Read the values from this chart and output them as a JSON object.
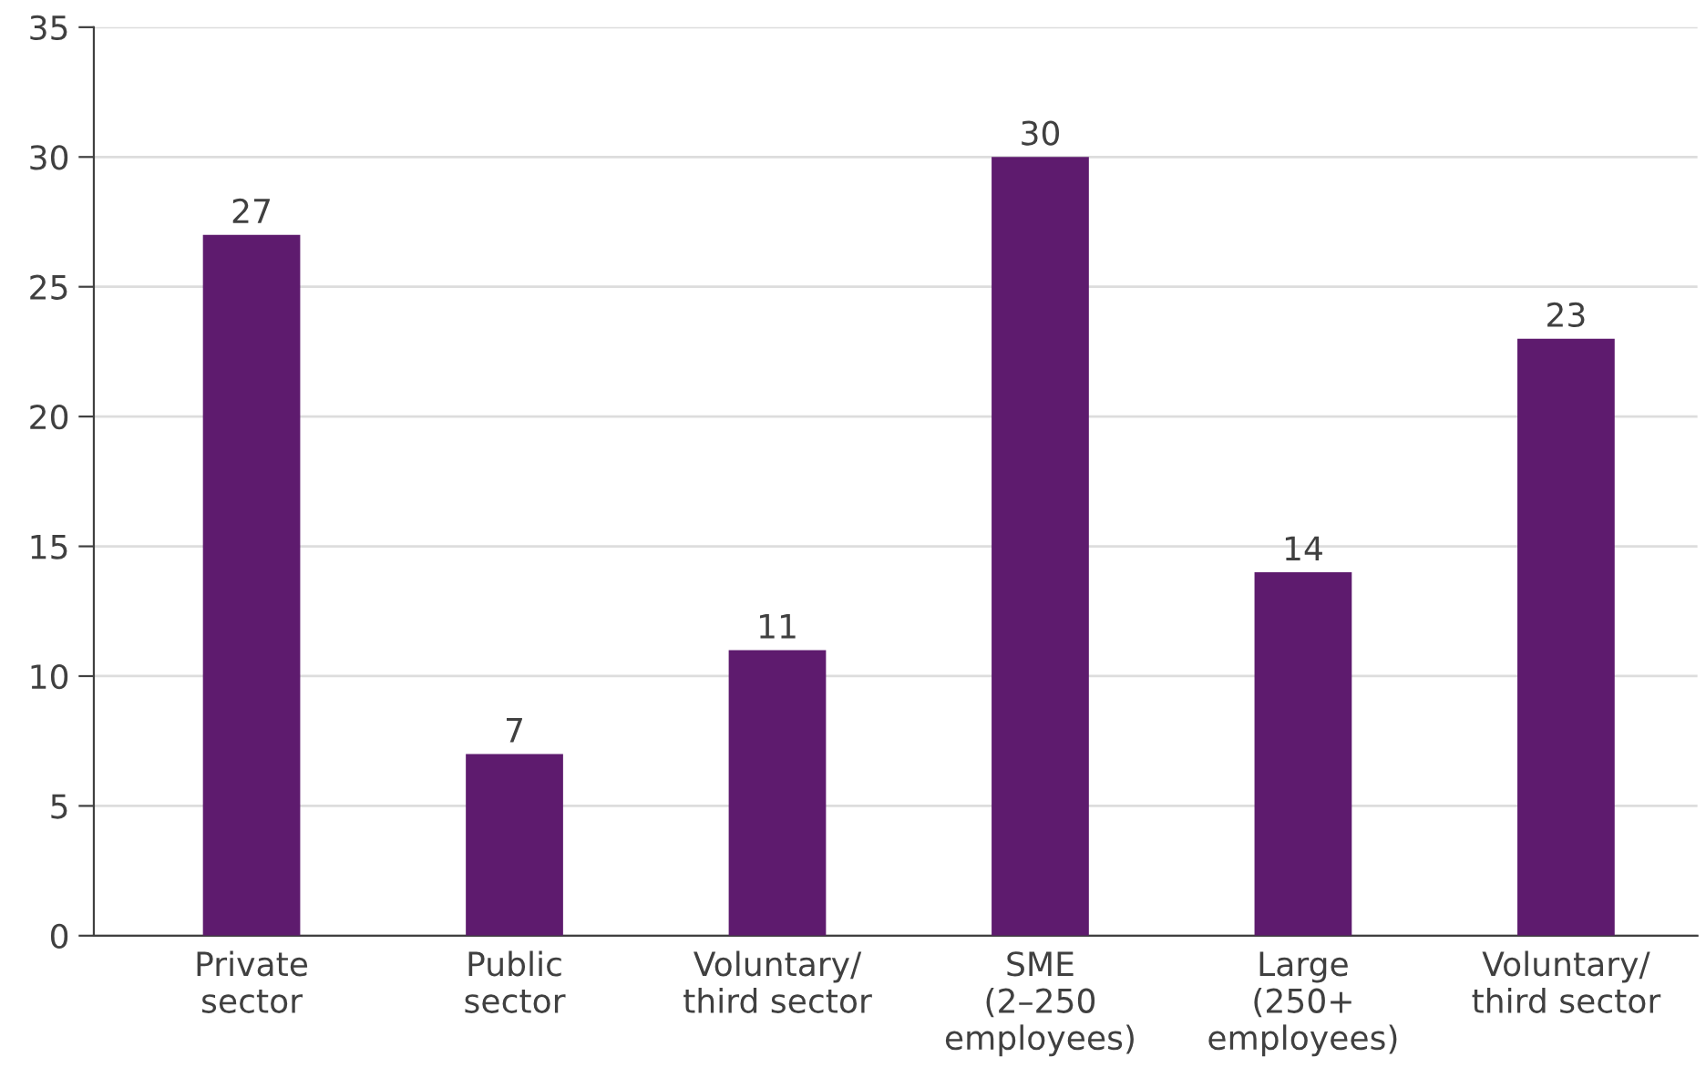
{
  "chart_data": {
    "type": "bar",
    "categories": [
      "Private\nsector",
      "Public\nsector",
      "Voluntary/\nthird sector",
      "SME\n(2–250\nemployees)",
      "Large\n(250+\nemployees)",
      "Voluntary/\nthird sector"
    ],
    "values": [
      27,
      7,
      11,
      30,
      14,
      23
    ],
    "color": "#5e1b6e",
    "ylim": [
      0,
      35
    ],
    "yticks": [
      0,
      5,
      10,
      15,
      20,
      25,
      30,
      35
    ],
    "grid": "y",
    "data_labels": true
  }
}
